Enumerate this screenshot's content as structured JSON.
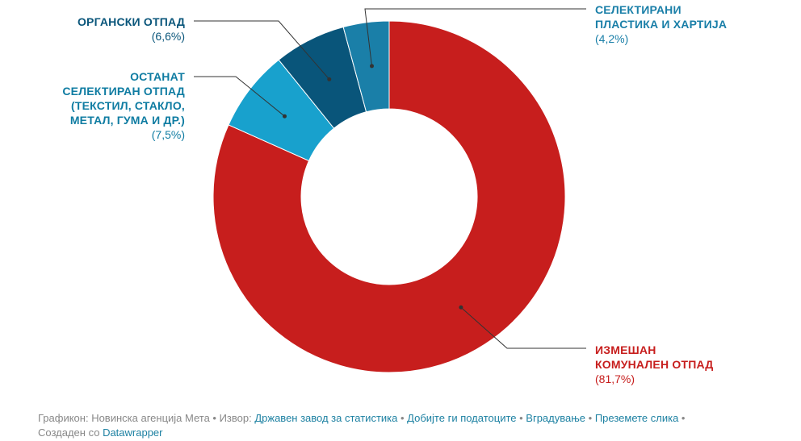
{
  "chart_data": {
    "type": "pie",
    "variant": "donut",
    "title": "",
    "slices": [
      {
        "label_lines": [
          "ИЗМЕШАН",
          "КОМУНАЛЕН ОТПАД"
        ],
        "value": 81.7,
        "value_text": "(81,7%)",
        "color": "#c71e1d",
        "label_color": "#c71e1d"
      },
      {
        "label_lines": [
          "ОСТАНАТ",
          "СЕЛЕКТИРАН ОТПАД",
          "(ТЕКСТИЛ, СТАКЛО,",
          "МЕТАЛ, ГУМА И ДР.)"
        ],
        "value": 7.5,
        "value_text": "(7,5%)",
        "color": "#18a1cd",
        "label_color": "#0f7ca2"
      },
      {
        "label_lines": [
          "ОРГАНСКИ ОТПАД"
        ],
        "value": 6.6,
        "value_text": "(6,6%)",
        "color": "#09557a",
        "label_color": "#09557a"
      },
      {
        "label_lines": [
          "СЕЛЕКТИРАНИ",
          "ПЛАСТИКА И ХАРТИЈА"
        ],
        "value": 4.2,
        "value_text": "(4,2%)",
        "color": "#1a7fa8",
        "label_color": "#1a7fa8"
      }
    ]
  },
  "footer": {
    "prefix": "Графикон: Новинска агенција Мета • Извор: ",
    "source_link": "Државен завод за статистика",
    "links": [
      "Добијте ги податоците",
      "Вградување",
      "Преземете слика"
    ],
    "bullet": " • ",
    "created_prefix": "Создаден со ",
    "created_link": "Datawrapper"
  }
}
